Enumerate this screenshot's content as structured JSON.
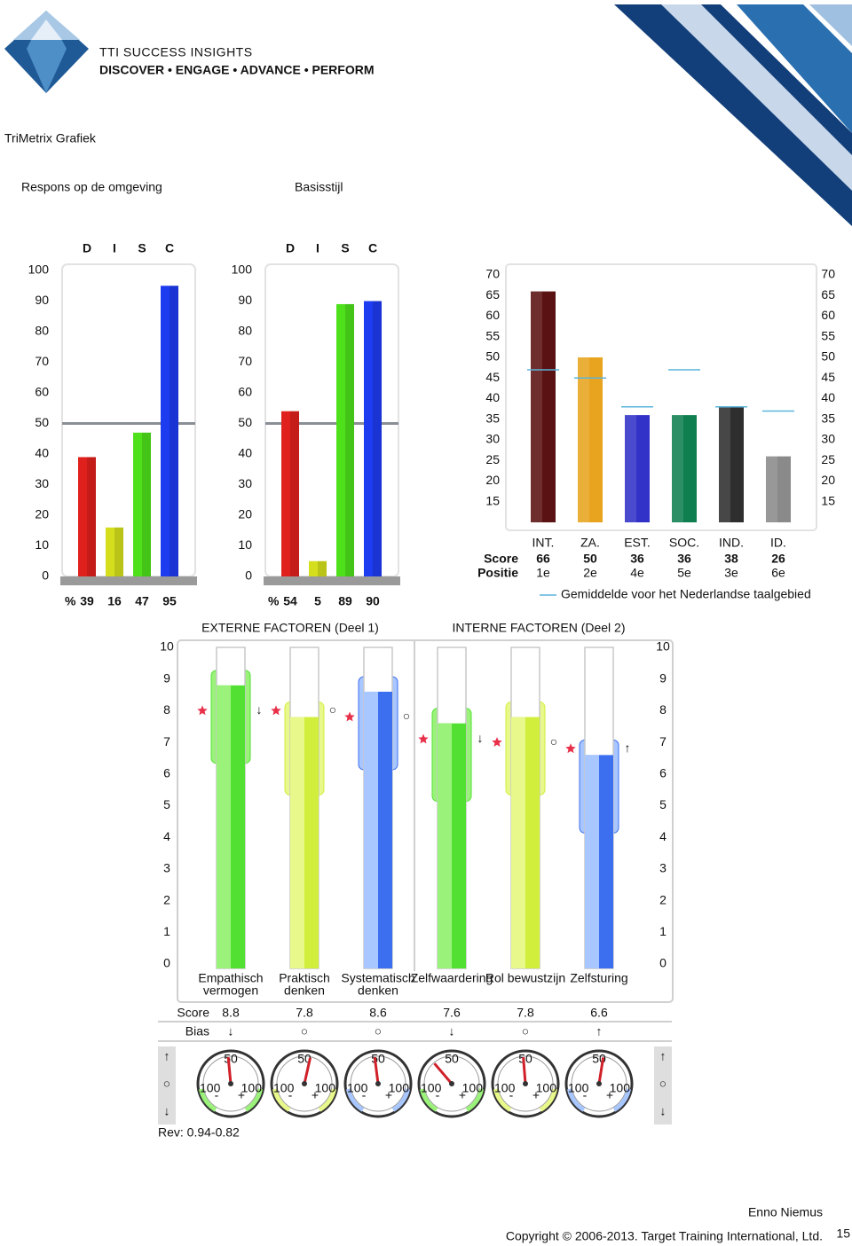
{
  "header": {
    "logo": "TTI SUCCESS INSIGHTS",
    "tagline": "DISCOVER • ENGAGE • ADVANCE • PERFORM",
    "title": "TriMetrix Grafiek"
  },
  "chart_data": [
    {
      "type": "bar",
      "subtitle": "Respons op de omgeving",
      "categories": [
        "D",
        "I",
        "S",
        "C"
      ],
      "values": [
        39,
        16,
        47,
        95
      ],
      "colors": [
        "#e0201c",
        "#d4de1c",
        "#4fe01c",
        "#1d3cf0"
      ],
      "percent_label": "%",
      "ylim": [
        0,
        100
      ],
      "yticks": [
        0,
        10,
        20,
        30,
        40,
        50,
        60,
        70,
        80,
        90,
        100
      ]
    },
    {
      "type": "bar",
      "subtitle": "Basisstijl",
      "categories": [
        "D",
        "I",
        "S",
        "C"
      ],
      "values": [
        54,
        5,
        89,
        90
      ],
      "colors": [
        "#e0201c",
        "#d4de1c",
        "#4fe01c",
        "#1d3cf0"
      ],
      "percent_label": "%",
      "ylim": [
        0,
        100
      ],
      "yticks": [
        0,
        10,
        20,
        30,
        40,
        50,
        60,
        70,
        80,
        90,
        100
      ]
    },
    {
      "type": "bar",
      "categories": [
        "INT.",
        "ZA.",
        "EST.",
        "SOC.",
        "IND.",
        "ID."
      ],
      "score_label": "Score",
      "values": [
        66,
        50,
        36,
        36,
        38,
        26
      ],
      "position_label": "Positie",
      "positions": [
        "1e",
        "2e",
        "4e",
        "5e",
        "3e",
        "6e"
      ],
      "colors": [
        "#5a1212",
        "#e8a41e",
        "#3232c8",
        "#0f7f50",
        "#2e2e2e",
        "#8a8a8a"
      ],
      "series_avg": {
        "name": "Gemiddelde voor het Nederlandse taalgebied",
        "color": "#5ab4dc",
        "values": [
          47,
          45,
          38,
          47,
          38,
          37
        ]
      },
      "ylim": [
        10,
        70
      ],
      "yticks": [
        15,
        20,
        25,
        30,
        35,
        40,
        45,
        50,
        55,
        60,
        65,
        70
      ]
    },
    {
      "type": "thermometer",
      "section_labels": [
        "EXTERNE FACTOREN (Deel 1)",
        "INTERNE FACTOREN (Deel 2)"
      ],
      "categories": [
        [
          "Empathisch",
          "vermogen"
        ],
        [
          "Praktisch",
          "denken"
        ],
        [
          "Systematisch",
          "denken"
        ],
        [
          "Zelfwaardering"
        ],
        [
          "Rol bewustzijn"
        ],
        [
          "Zelfsturing"
        ]
      ],
      "score_label": "Score",
      "values": [
        8.8,
        7.8,
        8.6,
        7.6,
        7.8,
        6.6
      ],
      "value_labels": [
        "8.8",
        "7.8",
        "8.6",
        "7.6",
        "7.8",
        "6.6"
      ],
      "bias_label": "Bias",
      "bias": [
        "↓",
        "○",
        "○",
        "↓",
        "○",
        "↑"
      ],
      "bias_legend": [
        "↑",
        "○",
        "↓"
      ],
      "stars": [
        8.0,
        8.0,
        7.8,
        7.1,
        7.0,
        6.8
      ],
      "colors": [
        "#52e032",
        "#d2ee3c",
        "#3c6ef0",
        "#52e032",
        "#d2ee3c",
        "#3c6ef0"
      ],
      "light_colors": [
        "#9af27a",
        "#e8f88a",
        "#a8c6ff",
        "#9af27a",
        "#e8f88a",
        "#a8c6ff"
      ],
      "ylim": [
        0,
        10
      ],
      "yticks": [
        0,
        1,
        2,
        3,
        4,
        5,
        6,
        7,
        8,
        9,
        10
      ],
      "dial_values": [
        -6,
        14,
        -8,
        -45,
        -5,
        10
      ],
      "dial_lim": [
        -100,
        100
      ],
      "dial_labels": [
        "50",
        "100",
        "100",
        "-",
        "+"
      ],
      "note": "Rev: 0.94-0.82"
    }
  ],
  "footer": {
    "name": "Enno Niemus",
    "copyright": "Copyright © 2006-2013. Target Training International, Ltd.",
    "page": "15"
  }
}
